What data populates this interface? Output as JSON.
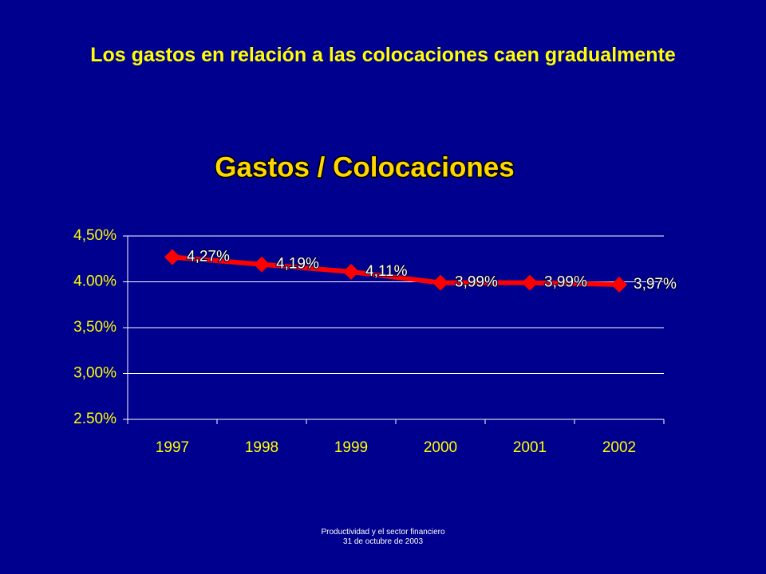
{
  "slide": {
    "title": "Los gastos en relación a las colocaciones caen gradualmente",
    "footer": [
      "Productividad y el sector financiero",
      "31 de octubre de 2003"
    ]
  },
  "chart_data": {
    "type": "line",
    "title": "Gastos / Colocaciones",
    "categories": [
      "1997",
      "1998",
      "1999",
      "2000",
      "2001",
      "2002"
    ],
    "values": [
      4.27,
      4.19,
      4.11,
      3.99,
      3.99,
      3.97
    ],
    "value_labels": [
      "4,27%",
      "4,19%",
      "4,11%",
      "3,99%",
      "3,99%",
      "3,97%"
    ],
    "color": "#ff0000",
    "ylim": [
      2.5,
      4.5
    ],
    "yticks": [
      {
        "value": 2.5,
        "label": "2.50%"
      },
      {
        "value": 3,
        "label": "3,00%"
      },
      {
        "value": 3.5,
        "label": "3,50%"
      },
      {
        "value": 4,
        "label": "4.00%"
      },
      {
        "value": 4.5,
        "label": "4,50%"
      }
    ],
    "grid": true
  }
}
